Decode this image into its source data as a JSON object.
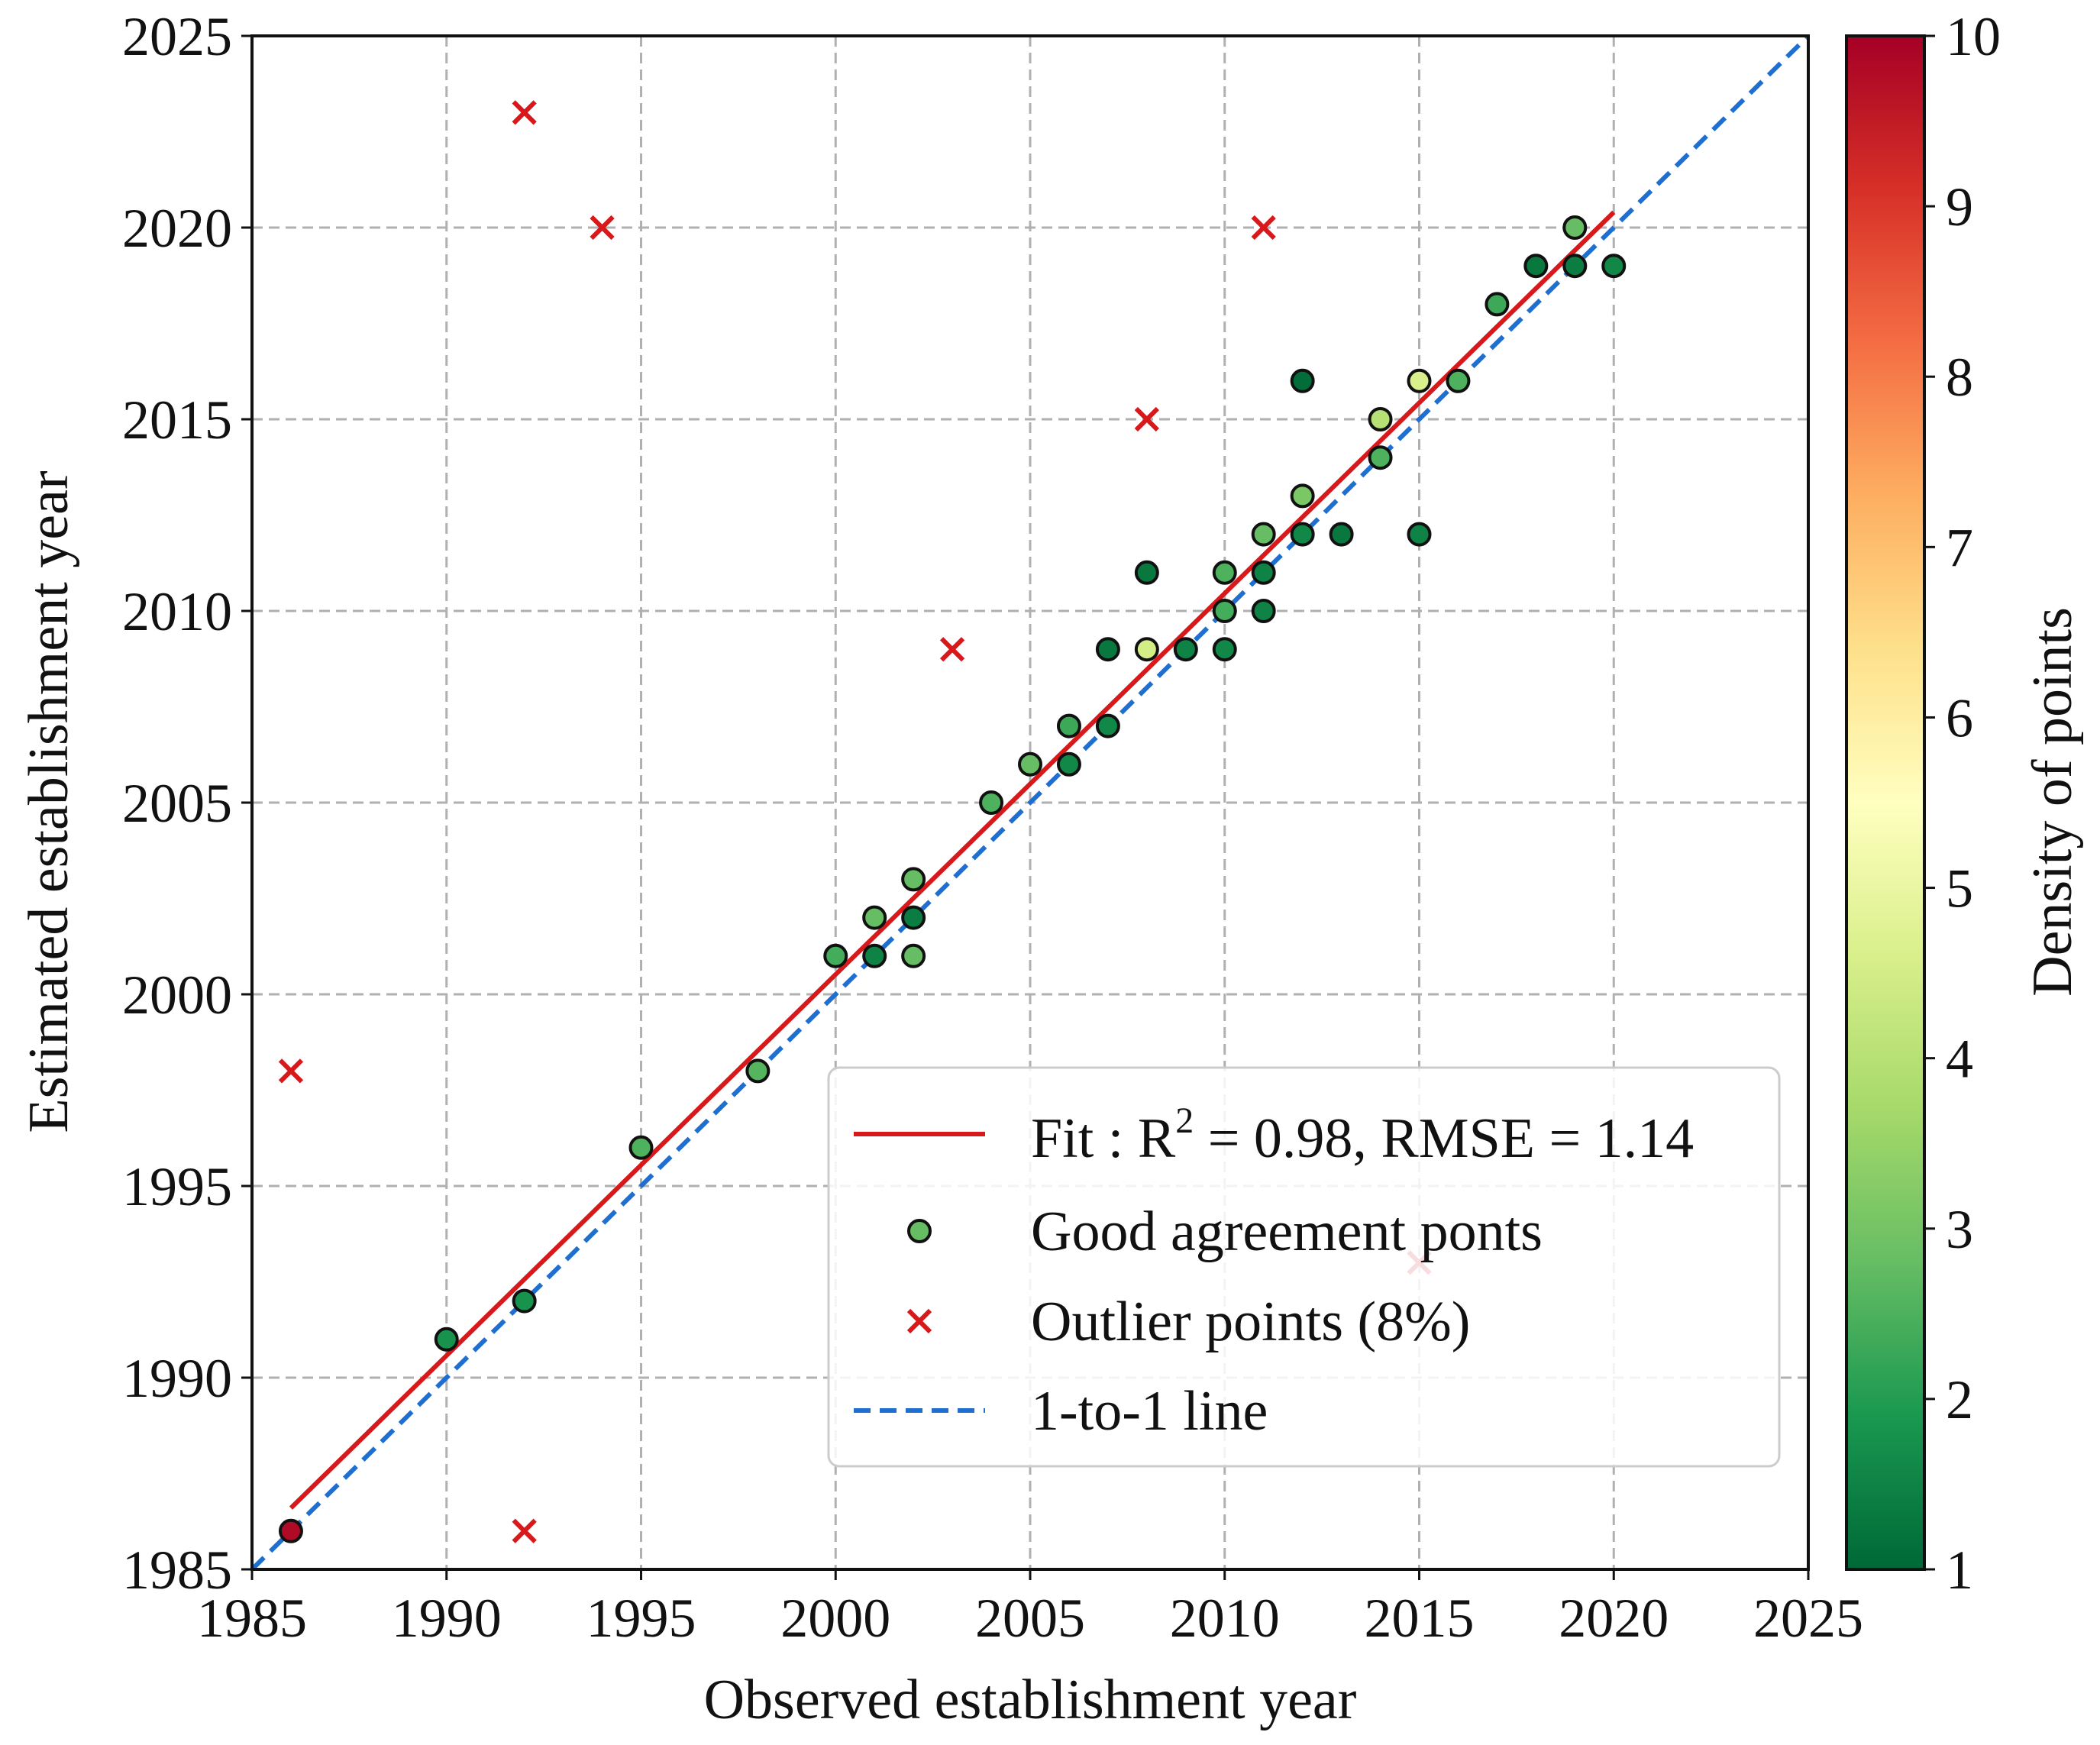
{
  "chart_data": {
    "type": "scatter",
    "xlabel": "Observed establishment year",
    "ylabel": "Estimated establishment year",
    "xlim": [
      1985,
      2025
    ],
    "ylim": [
      1985,
      2025
    ],
    "xticks": [
      1985,
      1990,
      1995,
      2000,
      2005,
      2010,
      2015,
      2020,
      2025
    ],
    "yticks": [
      1985,
      1990,
      1995,
      2000,
      2005,
      2010,
      2015,
      2020,
      2025
    ],
    "grid": true,
    "colorbar": {
      "label": "Density of points",
      "min": 1,
      "max": 10,
      "ticks": [
        1,
        2,
        3,
        4,
        5,
        6,
        7,
        8,
        9,
        10
      ],
      "colormap": "RdYlGn_r"
    },
    "fit_line": {
      "label_prefix": "Fit : R",
      "label_sup": "2",
      "label_suffix": " = 0.98, RMSE = 1.14",
      "x": [
        1986,
        2020
      ],
      "y": [
        1986.6,
        2020.4
      ],
      "color": "#d7191c"
    },
    "one_to_one": {
      "label": "1-to-1 line",
      "x": [
        1985,
        2025
      ],
      "y": [
        1985,
        2025
      ],
      "color": "#1f6fd1"
    },
    "good_points": {
      "label": "Good agreement ponts",
      "points": [
        {
          "x": 1986,
          "y": 1986,
          "d": 9.8
        },
        {
          "x": 1990,
          "y": 1991,
          "d": 1.8
        },
        {
          "x": 1992,
          "y": 1992,
          "d": 1.8
        },
        {
          "x": 1995,
          "y": 1996,
          "d": 2.5
        },
        {
          "x": 1998,
          "y": 1998,
          "d": 2.6
        },
        {
          "x": 2000,
          "y": 2001,
          "d": 2.4
        },
        {
          "x": 2001,
          "y": 2002,
          "d": 2.8
        },
        {
          "x": 2001,
          "y": 2001,
          "d": 1.5
        },
        {
          "x": 2002,
          "y": 2003,
          "d": 2.8
        },
        {
          "x": 2002,
          "y": 2002,
          "d": 1.4
        },
        {
          "x": 2002,
          "y": 2001,
          "d": 2.8
        },
        {
          "x": 2004,
          "y": 2005,
          "d": 2.5
        },
        {
          "x": 2005,
          "y": 2006,
          "d": 2.8
        },
        {
          "x": 2006,
          "y": 2007,
          "d": 2.3
        },
        {
          "x": 2006,
          "y": 2006,
          "d": 1.6
        },
        {
          "x": 2007,
          "y": 2009,
          "d": 1.3
        },
        {
          "x": 2007,
          "y": 2007,
          "d": 1.6
        },
        {
          "x": 2008,
          "y": 2011,
          "d": 1.3
        },
        {
          "x": 2008,
          "y": 2009,
          "d": 4.5
        },
        {
          "x": 2009,
          "y": 2009,
          "d": 1.5
        },
        {
          "x": 2010,
          "y": 2011,
          "d": 2.5
        },
        {
          "x": 2010,
          "y": 2010,
          "d": 2.4
        },
        {
          "x": 2010,
          "y": 2009,
          "d": 1.6
        },
        {
          "x": 2011,
          "y": 2012,
          "d": 2.8
        },
        {
          "x": 2011,
          "y": 2011,
          "d": 1.5
        },
        {
          "x": 2011,
          "y": 2010,
          "d": 1.5
        },
        {
          "x": 2012,
          "y": 2016,
          "d": 1.1
        },
        {
          "x": 2012,
          "y": 2013,
          "d": 3.1
        },
        {
          "x": 2012,
          "y": 2012,
          "d": 1.6
        },
        {
          "x": 2013,
          "y": 2012,
          "d": 1.3
        },
        {
          "x": 2014,
          "y": 2015,
          "d": 4.0
        },
        {
          "x": 2014,
          "y": 2014,
          "d": 2.5
        },
        {
          "x": 2015,
          "y": 2016,
          "d": 4.6
        },
        {
          "x": 2015,
          "y": 2012,
          "d": 1.5
        },
        {
          "x": 2016,
          "y": 2016,
          "d": 2.5
        },
        {
          "x": 2017,
          "y": 2018,
          "d": 2.3
        },
        {
          "x": 2018,
          "y": 2019,
          "d": 1.3
        },
        {
          "x": 2019,
          "y": 2020,
          "d": 2.8
        },
        {
          "x": 2019,
          "y": 2019,
          "d": 1.4
        },
        {
          "x": 2020,
          "y": 2019,
          "d": 1.6
        }
      ]
    },
    "outlier_points": {
      "label": "Outlier points (8%)",
      "color": "#d7191c",
      "points": [
        {
          "x": 1986,
          "y": 1998
        },
        {
          "x": 1992,
          "y": 2023
        },
        {
          "x": 1992,
          "y": 1986
        },
        {
          "x": 1994,
          "y": 2020
        },
        {
          "x": 2003,
          "y": 2009
        },
        {
          "x": 2008,
          "y": 2015
        },
        {
          "x": 2011,
          "y": 2020
        },
        {
          "x": 2015,
          "y": 1993
        }
      ]
    },
    "legend_position": "lower-right"
  }
}
